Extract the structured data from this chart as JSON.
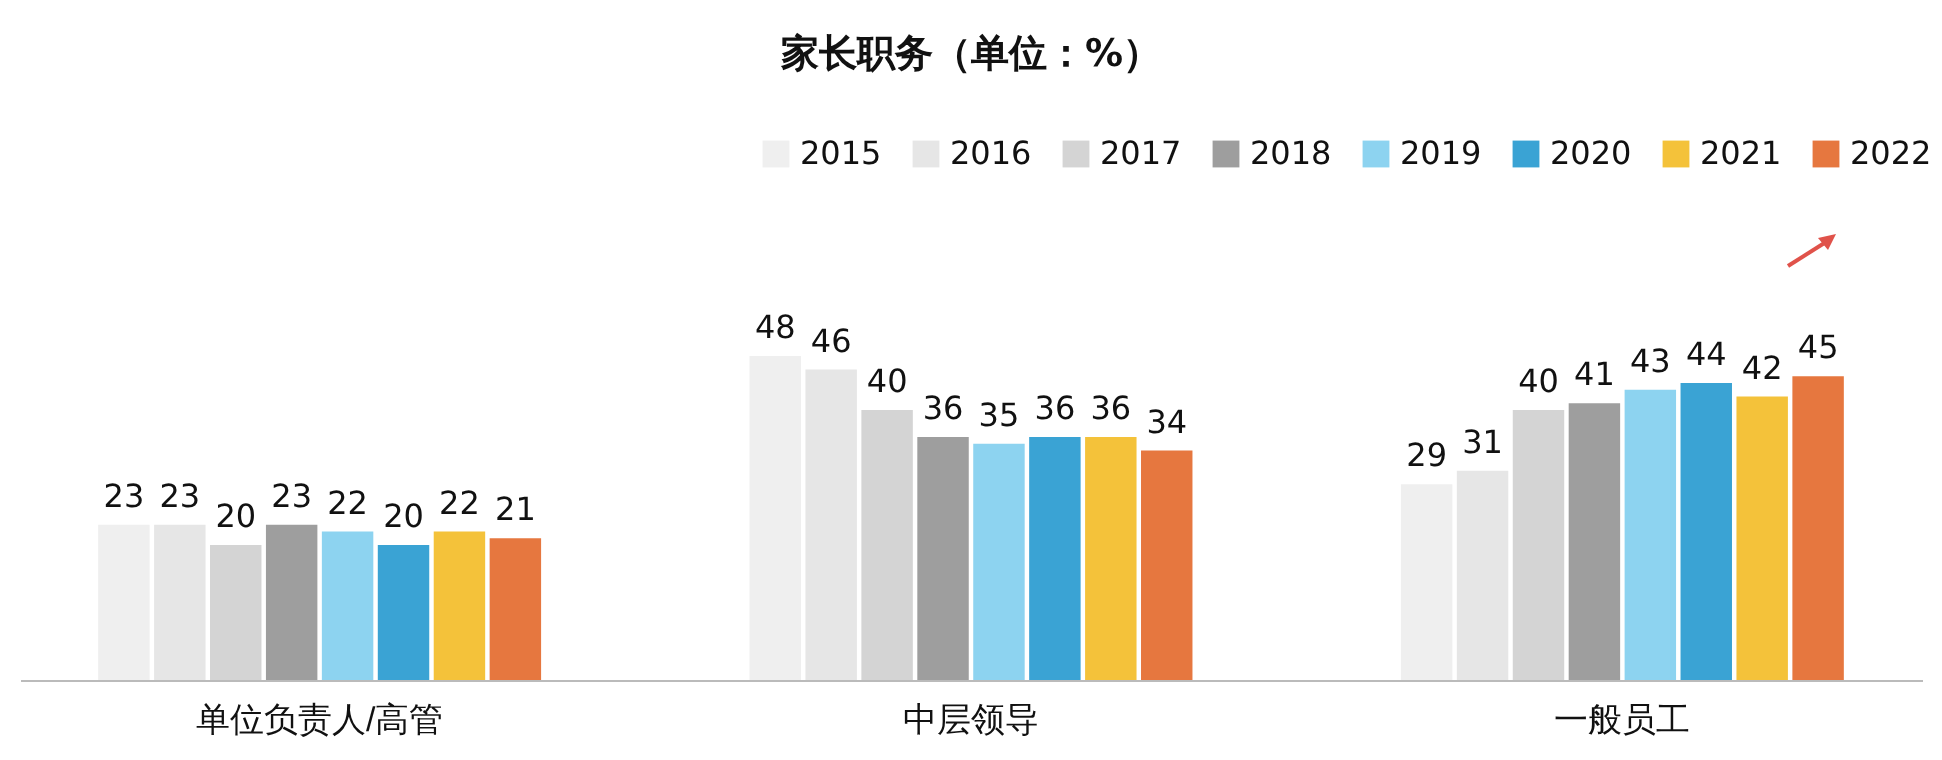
{
  "chart_data": {
    "type": "bar",
    "title": "家长职务（单位：%）",
    "categories": [
      "单位负责人/高管",
      "中层领导",
      "一般员工"
    ],
    "series": [
      {
        "name": "2015",
        "color": "#efefef",
        "values": [
          23,
          48,
          29
        ]
      },
      {
        "name": "2016",
        "color": "#e6e6e6",
        "values": [
          23,
          46,
          31
        ]
      },
      {
        "name": "2017",
        "color": "#d4d4d4",
        "values": [
          20,
          40,
          40
        ]
      },
      {
        "name": "2018",
        "color": "#9e9e9e",
        "values": [
          23,
          36,
          41
        ]
      },
      {
        "name": "2019",
        "color": "#8dd3f0",
        "values": [
          22,
          35,
          43
        ]
      },
      {
        "name": "2020",
        "color": "#3aa3d4",
        "values": [
          20,
          36,
          44
        ]
      },
      {
        "name": "2021",
        "color": "#f4c23a",
        "values": [
          22,
          36,
          42
        ]
      },
      {
        "name": "2022",
        "color": "#e6773f",
        "values": [
          21,
          34,
          45
        ]
      }
    ],
    "data_labels": true,
    "legend": "top right"
  }
}
